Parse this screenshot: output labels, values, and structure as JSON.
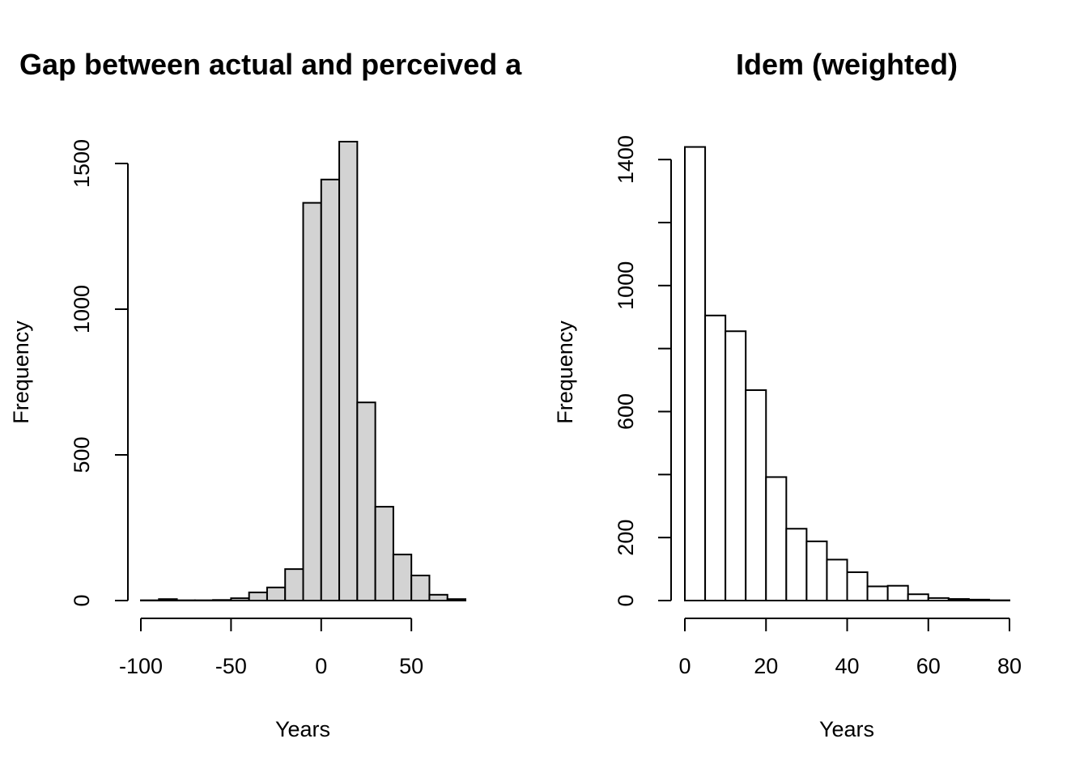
{
  "chart_data": [
    {
      "type": "bar",
      "title": "Gap between actual and perceived a",
      "xlabel": "Years",
      "ylabel": "Frequency",
      "fill": "#d3d3d3",
      "bin_edges": [
        -100,
        -90,
        -80,
        -70,
        -60,
        -50,
        -40,
        -30,
        -20,
        -10,
        0,
        10,
        20,
        30,
        40,
        50,
        60,
        70,
        80
      ],
      "values": [
        1,
        5,
        1,
        1,
        2,
        8,
        28,
        45,
        108,
        1365,
        1445,
        1575,
        680,
        322,
        158,
        86,
        20,
        5
      ],
      "xlim": [
        -100,
        80
      ],
      "ylim": [
        0,
        1600
      ],
      "xticks": [
        -100,
        -50,
        0,
        50
      ],
      "xtick_labels": [
        "-100",
        "-50",
        "0",
        "50"
      ],
      "yticks": [
        0,
        500,
        1000,
        1500
      ],
      "ytick_labels": [
        "0",
        "500",
        "1000",
        "1500"
      ],
      "grid": false
    },
    {
      "type": "bar",
      "title": "Idem  (weighted)",
      "xlabel": "Years",
      "ylabel": "Frequency",
      "fill": "#ffffff",
      "bin_edges": [
        0,
        5,
        10,
        15,
        20,
        25,
        30,
        35,
        40,
        45,
        50,
        55,
        60,
        65,
        70,
        75,
        80
      ],
      "values": [
        1440,
        905,
        855,
        668,
        392,
        228,
        188,
        130,
        90,
        45,
        47,
        20,
        8,
        5,
        3,
        1
      ],
      "xlim": [
        0,
        80
      ],
      "ylim": [
        0,
        1480
      ],
      "xticks": [
        0,
        20,
        40,
        60,
        80
      ],
      "xtick_labels": [
        "0",
        "20",
        "40",
        "60",
        "80"
      ],
      "yticks": [
        0,
        200,
        400,
        600,
        800,
        1000,
        1200,
        1400
      ],
      "ytick_labels": [
        "0",
        "200",
        "",
        "600",
        "",
        "1000",
        "",
        "1400"
      ],
      "grid": false
    }
  ]
}
